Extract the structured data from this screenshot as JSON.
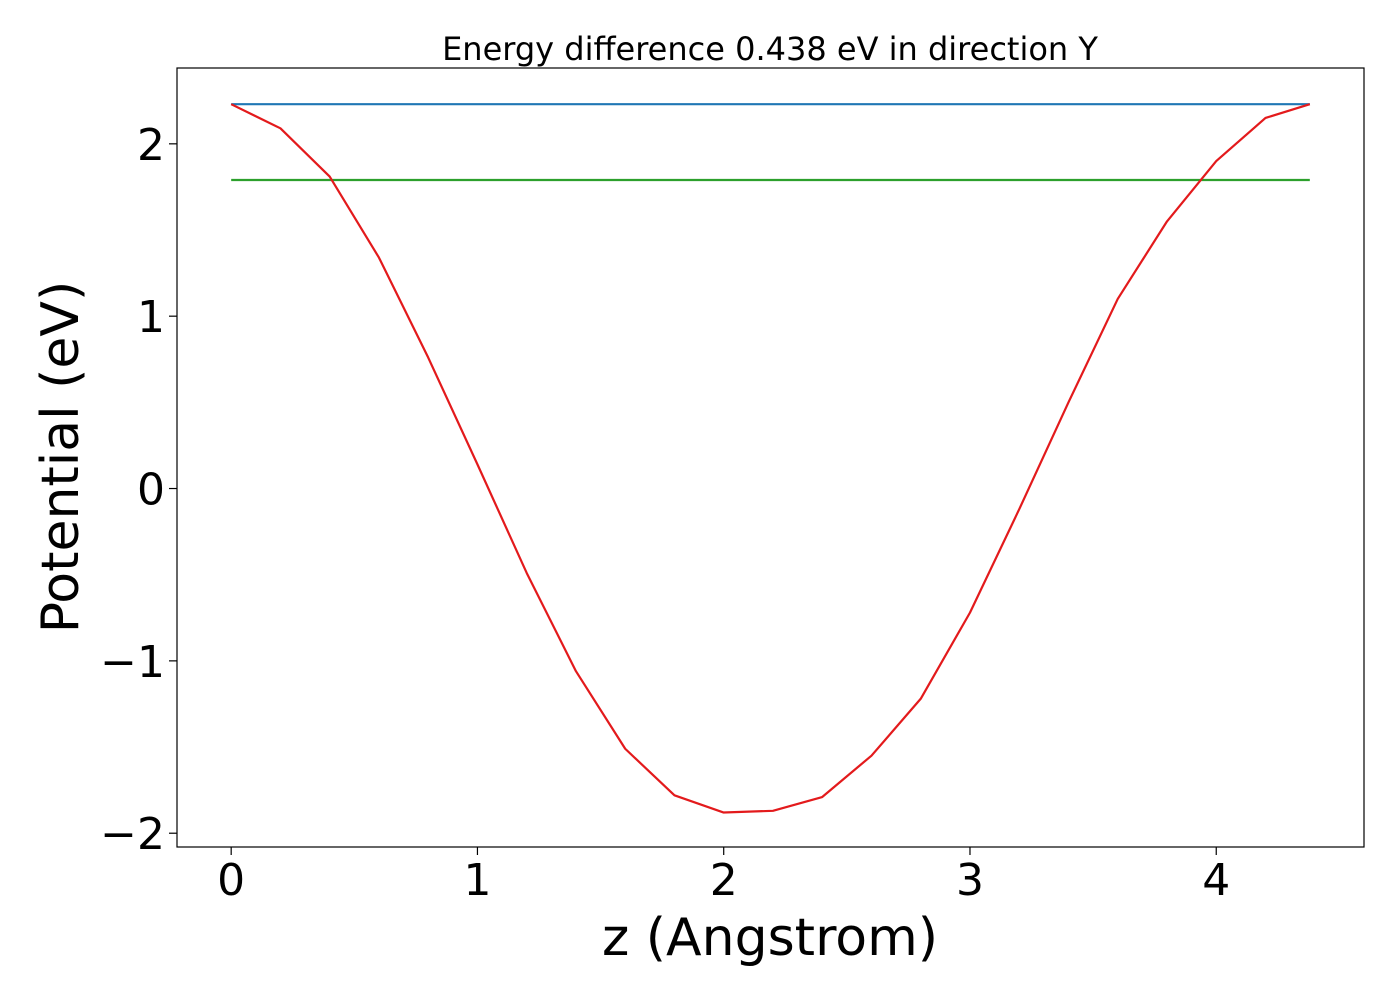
{
  "chart_data": {
    "type": "line",
    "title": "Energy difference 0.438 eV in direction Y",
    "xlabel": "z (Angstrom)",
    "ylabel": "Potential (eV)",
    "xlim": [
      -0.22,
      4.6
    ],
    "ylim": [
      -2.08,
      2.44
    ],
    "x_ticks": [
      0,
      1,
      2,
      3,
      4
    ],
    "x_tick_labels": [
      "0",
      "1",
      "2",
      "3",
      "4"
    ],
    "y_ticks": [
      -2,
      -1,
      0,
      1,
      2
    ],
    "y_tick_labels": [
      "−2",
      "−1",
      "0",
      "1",
      "2"
    ],
    "grid": false,
    "series": [
      {
        "color": "#1f77b4",
        "x": [
          0,
          4.38
        ],
        "y": [
          2.23,
          2.23
        ]
      },
      {
        "color": "#2ca02c",
        "x": [
          0,
          4.38
        ],
        "y": [
          1.79,
          1.79
        ]
      },
      {
        "color": "#e31a1c",
        "x": [
          0,
          0.2,
          0.4,
          0.6,
          0.8,
          1.0,
          1.2,
          1.4,
          1.6,
          1.8,
          2.0,
          2.2,
          2.4,
          2.6,
          2.8,
          3.0,
          3.2,
          3.4,
          3.6,
          3.8,
          4.0,
          4.2,
          4.38
        ],
        "y": [
          2.23,
          2.09,
          1.81,
          1.34,
          0.76,
          0.14,
          -0.49,
          -1.06,
          -1.51,
          -1.78,
          -1.88,
          -1.87,
          -1.79,
          -1.55,
          -1.22,
          -0.72,
          -0.12,
          0.5,
          1.1,
          1.55,
          1.9,
          2.15,
          2.23
        ]
      }
    ]
  }
}
